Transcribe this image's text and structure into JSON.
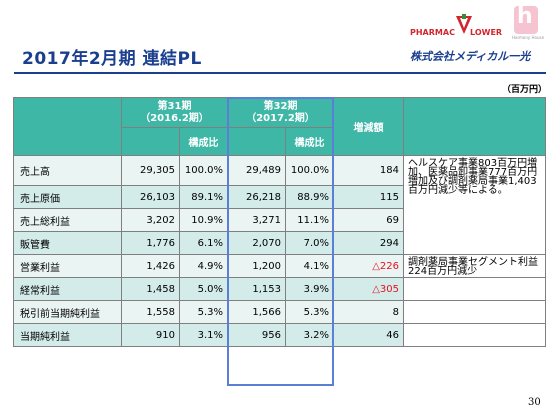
{
  "header": {
    "title": "2017年2月期 連結PL",
    "brand_pharmac": "PHARMAC",
    "brand_lower": "LOWER",
    "brand_harmony": "Harmony House",
    "company": "株式会社メディカル一光",
    "unit": "（百万円）"
  },
  "table": {
    "period31": "第31期",
    "period31_sub": "（2016.2期）",
    "period32": "第32期",
    "period32_sub": "（2017.2期）",
    "ratio_label": "構成比",
    "change_label": "増減額",
    "rows": [
      {
        "label": "売上高",
        "v31": "29,305",
        "r31": "100.0%",
        "v32": "29,489",
        "r32": "100.0%",
        "diff": "184",
        "neg": false
      },
      {
        "label": "売上原価",
        "v31": "26,103",
        "r31": "89.1%",
        "v32": "26,218",
        "r32": "88.9%",
        "diff": "115",
        "neg": false
      },
      {
        "label": "売上総利益",
        "v31": "3,202",
        "r31": "10.9%",
        "v32": "3,271",
        "r32": "11.1%",
        "diff": "69",
        "neg": false
      },
      {
        "label": "販管費",
        "v31": "1,776",
        "r31": "6.1%",
        "v32": "2,070",
        "r32": "7.0%",
        "diff": "294",
        "neg": false
      },
      {
        "label": "営業利益",
        "v31": "1,426",
        "r31": "4.9%",
        "v32": "1,200",
        "r32": "4.1%",
        "diff": "△226",
        "neg": true
      },
      {
        "label": "経常利益",
        "v31": "1,458",
        "r31": "5.0%",
        "v32": "1,153",
        "r32": "3.9%",
        "diff": "△305",
        "neg": true
      },
      {
        "label": "税引前当期純利益",
        "v31": "1,558",
        "r31": "5.3%",
        "v32": "1,566",
        "r32": "5.3%",
        "diff": "8",
        "neg": false
      },
      {
        "label": "当期純利益",
        "v31": "910",
        "r31": "3.1%",
        "v32": "956",
        "r32": "3.2%",
        "diff": "46",
        "neg": false
      }
    ],
    "note_sales": "ヘルスケア事業803百万円増加、医薬品卸事業777百万円増加及び調剤薬局事業1,403百万円減少等による。",
    "note_operating": "調剤薬局事業セグメント利益 224百万円減少"
  },
  "footer": {
    "page_number": "30"
  },
  "colors": {
    "accent": "#1a3f8f",
    "header_fill": "#3fb7a7",
    "negative": "#e8101f",
    "highlight_border": "#5b7fd6"
  }
}
